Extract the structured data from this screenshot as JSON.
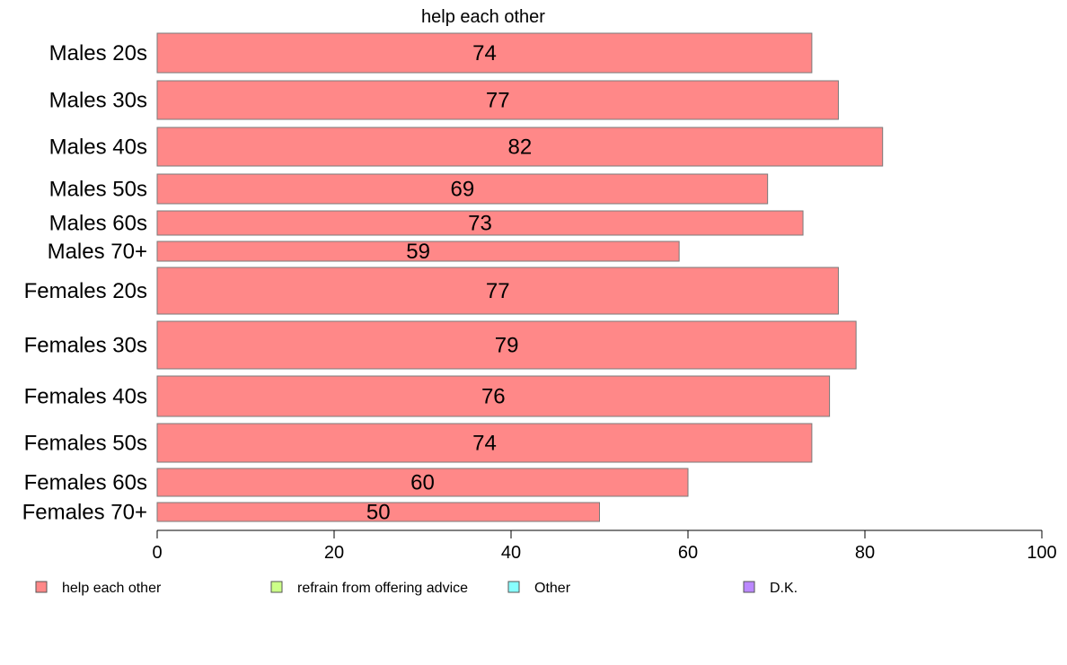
{
  "chart_data": {
    "type": "bar",
    "orientation": "horizontal",
    "title": "help each other",
    "categories": [
      "Males 20s",
      "Males 30s",
      "Males 40s",
      "Males 50s",
      "Males 60s",
      "Males 70+",
      "Females 20s",
      "Females 30s",
      "Females 40s",
      "Females 50s",
      "Females 60s",
      "Females 70+"
    ],
    "series": [
      {
        "name": "help each other",
        "color": "#ff8888",
        "values": [
          74,
          77,
          82,
          69,
          73,
          59,
          77,
          79,
          76,
          74,
          60,
          50
        ]
      }
    ],
    "data_labels": [
      "74",
      "77",
      "82",
      "69",
      "73",
      "59",
      "77",
      "79",
      "76",
      "74",
      "60",
      "50"
    ],
    "xlim": [
      0,
      100
    ],
    "xticks": [
      0,
      20,
      40,
      60,
      80,
      100
    ],
    "xtick_labels": [
      "0",
      "20",
      "40",
      "60",
      "80",
      "100"
    ],
    "grid": false,
    "legend": {
      "placement": "bottom",
      "items": [
        {
          "label": "help each other",
          "color": "#ff8888"
        },
        {
          "label": "refrain from offering advice",
          "color": "#ccff88"
        },
        {
          "label": "Other",
          "color": "#88ffff"
        },
        {
          "label": "D.K.",
          "color": "#bb88ff"
        }
      ]
    }
  }
}
